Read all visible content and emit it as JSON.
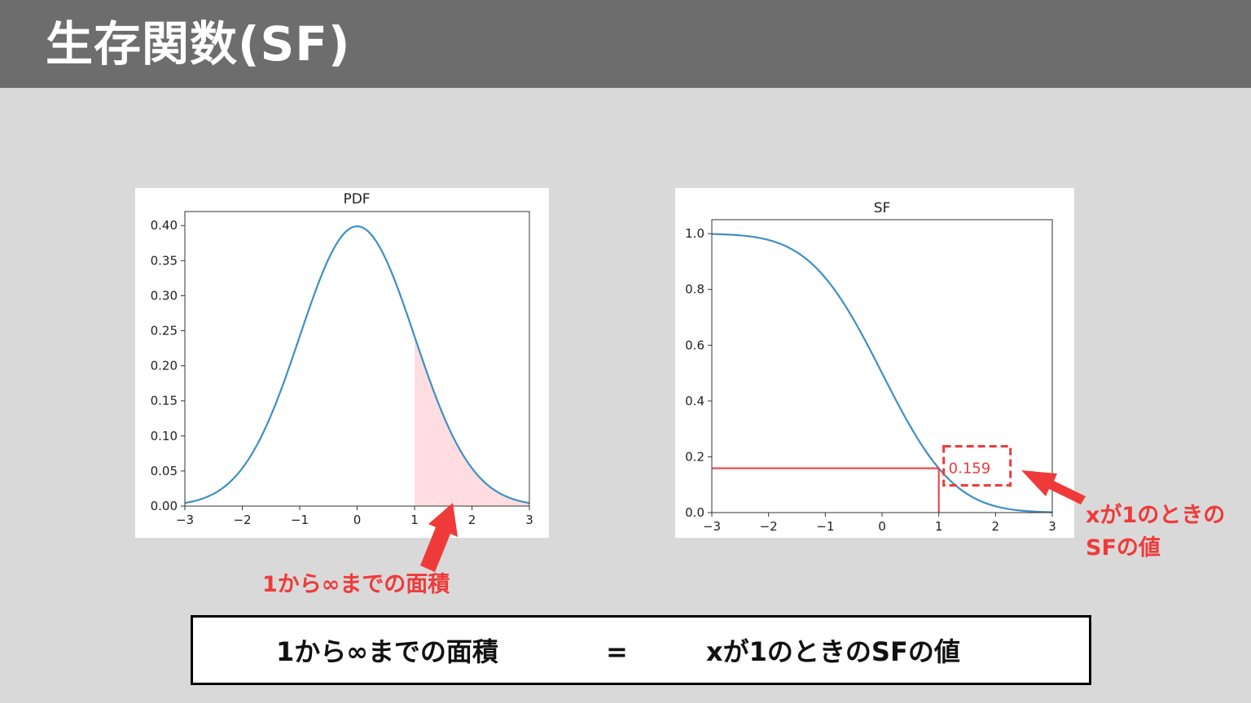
{
  "slide": {
    "title": "生存関数(SF)",
    "colors": {
      "header": "#6d6d6d",
      "background": "#d9d9d9",
      "accent": "#f03a3a",
      "curve": "#3f8fc4",
      "fill": "#ffdde0"
    }
  },
  "annotations": {
    "pdf_area": "1から∞までの面積",
    "sf_value_line1": "xが1のときの",
    "sf_value_line2": "SFの値"
  },
  "equation": {
    "left": "1から∞までの面積",
    "sign": "=",
    "right": "xが1のときのSFの値"
  },
  "chart_data": [
    {
      "type": "line",
      "title": "PDF",
      "xlim": [
        -3,
        3
      ],
      "ylim": [
        0,
        0.42
      ],
      "x_ticks": [
        -3,
        -2,
        -1,
        0,
        1,
        2,
        3
      ],
      "x_tick_labels": [
        "−3",
        "−2",
        "−1",
        "0",
        "1",
        "2",
        "3"
      ],
      "y_ticks": [
        0,
        0.05,
        0.1,
        0.15,
        0.2,
        0.25,
        0.3,
        0.35,
        0.4
      ],
      "y_tick_labels": [
        "0.00",
        "0.05",
        "0.10",
        "0.15",
        "0.20",
        "0.25",
        "0.30",
        "0.35",
        "0.40"
      ],
      "series": [
        {
          "x": [
            -3,
            -2.5,
            -2,
            -1.5,
            -1,
            -0.5,
            0,
            0.5,
            1,
            1.5,
            2,
            2.5,
            3
          ],
          "values": [
            0.0044,
            0.0175,
            0.054,
            0.1295,
            0.242,
            0.3521,
            0.3989,
            0.3521,
            0.242,
            0.1295,
            0.054,
            0.0175,
            0.0044
          ]
        }
      ],
      "shaded_region": {
        "from": 1,
        "to": 3
      },
      "grid": false
    },
    {
      "type": "line",
      "title": "SF",
      "xlim": [
        -3,
        3
      ],
      "ylim": [
        0,
        1.05
      ],
      "x_ticks": [
        -3,
        -2,
        -1,
        0,
        1,
        2,
        3
      ],
      "x_tick_labels": [
        "−3",
        "−2",
        "−1",
        "0",
        "1",
        "2",
        "3"
      ],
      "y_ticks": [
        0,
        0.2,
        0.4,
        0.6,
        0.8,
        1.0
      ],
      "y_tick_labels": [
        "0.0",
        "0.2",
        "0.4",
        "0.6",
        "0.8",
        "1.0"
      ],
      "series": [
        {
          "x": [
            -3,
            -2.5,
            -2,
            -1.5,
            -1,
            -0.5,
            0,
            0.5,
            1,
            1.5,
            2,
            2.5,
            3
          ],
          "values": [
            0.9987,
            0.9938,
            0.9772,
            0.9332,
            0.8413,
            0.6915,
            0.5,
            0.3085,
            0.1587,
            0.0668,
            0.0228,
            0.0062,
            0.0013
          ]
        }
      ],
      "highlight": {
        "x": 1,
        "y": 0.159,
        "label": "0.159"
      },
      "grid": false
    }
  ]
}
